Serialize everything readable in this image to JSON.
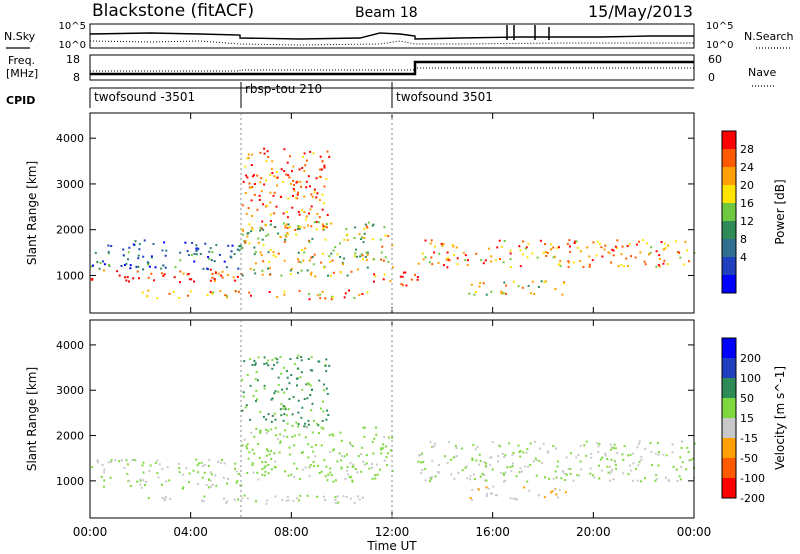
{
  "header": {
    "title": "Blackstone (fitACF)",
    "beam": "Beam 18",
    "date": "15/May/2013"
  },
  "noise_panel": {
    "left_label": "N.Sky",
    "right_label": "N.Search",
    "ticks": [
      "10^5",
      "10^0"
    ]
  },
  "freq_panel": {
    "left_label_line1": "Freq.",
    "left_label_line2": "[MHz]",
    "left_ticks": [
      "18",
      "8"
    ],
    "right_label": "Nave",
    "right_ticks": [
      "60",
      "0"
    ]
  },
  "cpid": {
    "label": "CPID",
    "programs": [
      {
        "name": "twofsound -3501",
        "start": 0,
        "end": 6
      },
      {
        "name": "rbsp-tou 210",
        "start": 6,
        "end": 12
      },
      {
        "name": "twofsound 3501",
        "start": 12,
        "end": 24
      }
    ]
  },
  "xaxis": {
    "label": "Time UT",
    "ticks": [
      "00:00",
      "04:00",
      "08:00",
      "12:00",
      "16:00",
      "20:00",
      "00:00"
    ]
  },
  "chart_data": [
    {
      "type": "heatmap",
      "title": "",
      "quantity": "Power",
      "ylabel": "Slant Range [km]",
      "yticks": [
        "1000",
        "2000",
        "3000",
        "4000"
      ],
      "ylim": [
        180,
        4550
      ],
      "xlim_hours": [
        0,
        24
      ],
      "colorbar_label": "Power [dB]",
      "colorbar_ticks": [
        "28",
        "24",
        "20",
        "16",
        "12",
        "8",
        "4"
      ],
      "colorbar_colors": [
        "#ff0000",
        "#ff5a00",
        "#ffa000",
        "#ffe400",
        "#6ec840",
        "#2e8b57",
        "#2f6f8f",
        "#1f3fbf",
        "#0000ff"
      ],
      "echo_regions": [
        {
          "t0": 0,
          "t1": 6,
          "r0": 850,
          "r1": 1150,
          "level": 26
        },
        {
          "t0": 0,
          "t1": 6,
          "r0": 1150,
          "r1": 1800,
          "level": 10
        },
        {
          "t0": 2,
          "t1": 11,
          "r0": 500,
          "r1": 700,
          "level": 22
        },
        {
          "t0": 6,
          "t1": 9.5,
          "r0": 2000,
          "r1": 3800,
          "level": 24
        },
        {
          "t0": 6,
          "t1": 12,
          "r0": 1000,
          "r1": 2200,
          "level": 18
        },
        {
          "t0": 11,
          "t1": 13,
          "r0": 800,
          "r1": 1100,
          "level": 28
        },
        {
          "t0": 13,
          "t1": 24,
          "r0": 1200,
          "r1": 1800,
          "level": 22
        },
        {
          "t0": 15,
          "t1": 19,
          "r0": 600,
          "r1": 900,
          "level": 18
        }
      ]
    },
    {
      "type": "heatmap",
      "title": "",
      "quantity": "Velocity",
      "ylabel": "Slant Range [km]",
      "yticks": [
        "1000",
        "2000",
        "3000",
        "4000"
      ],
      "ylim": [
        180,
        4550
      ],
      "xlim_hours": [
        0,
        24
      ],
      "colorbar_label": "Velocity [m s^-1]",
      "colorbar_ticks": [
        "200",
        "100",
        "50",
        "15",
        "-15",
        "-50",
        "-100",
        "-200"
      ],
      "colorbar_colors": [
        "#0000ff",
        "#1f3fbf",
        "#2e8b57",
        "#7fd83f",
        "#c8c8c8",
        "#ffa000",
        "#ff5a00",
        "#ff0000"
      ],
      "echo_regions": [
        {
          "t0": 0,
          "t1": 6,
          "r0": 850,
          "r1": 1500,
          "level": 0
        },
        {
          "t0": 2,
          "t1": 11,
          "r0": 500,
          "r1": 700,
          "level": -10
        },
        {
          "t0": 6,
          "t1": 9.5,
          "r0": 2200,
          "r1": 3800,
          "level": 60
        },
        {
          "t0": 6,
          "t1": 12,
          "r0": 1000,
          "r1": 2200,
          "level": 20
        },
        {
          "t0": 13,
          "t1": 24,
          "r0": 1000,
          "r1": 1900,
          "level": 0
        },
        {
          "t0": 15,
          "t1": 19,
          "r0": 600,
          "r1": 900,
          "level": -40
        }
      ]
    }
  ]
}
